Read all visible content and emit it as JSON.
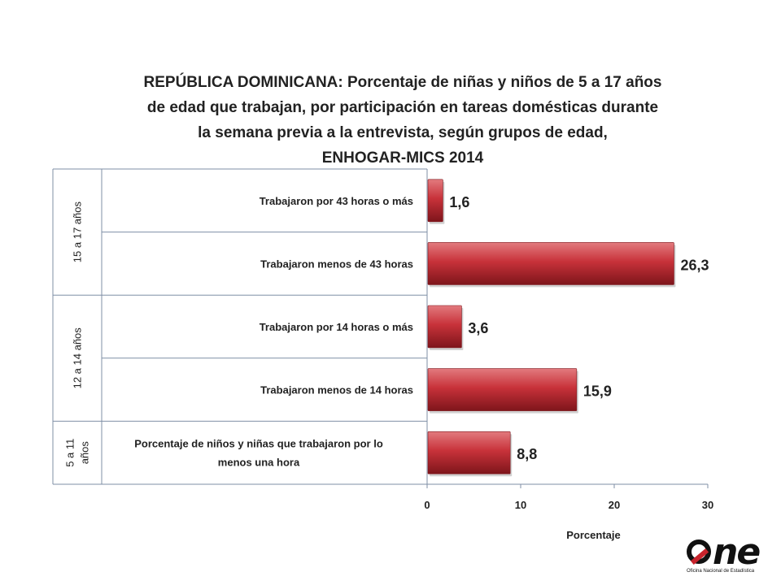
{
  "title_lines": [
    "REPÚBLICA  DOMINICANA: Porcentaje de niñas y niños de  5 a 17 años",
    "de edad que trabajan, por participación en tareas domésticas durante",
    "la semana previa a la entrevista, según grupos de edad,",
    "ENHOGAR-MICS 2014"
  ],
  "colors": {
    "bar": "#c8323a",
    "bar_dark": "#7e151b",
    "bar_light": "#e27a7e",
    "axis": "#7f8fa6",
    "text": "#222222"
  },
  "logo": {
    "word": "ne",
    "subtitle": "Oficina Nacional de Estadística"
  },
  "chart_data": {
    "type": "bar",
    "orientation": "horizontal",
    "title": "REPÚBLICA  DOMINICANA: Porcentaje de niñas y niños de  5 a 17 años de edad que trabajan, por participación en tareas domésticas durante la semana previa a la entrevista, según grupos de edad, ENHOGAR-MICS 2014",
    "categories": [
      "Trabajaron por 43 horas o más",
      "Trabajaron menos de 43 horas",
      "Trabajaron  por 14 horas o más",
      "Trabajaron menos de 14 horas",
      "Porcentaje de niños y niñas que trabajaron por lo menos una hora"
    ],
    "category_lines": [
      [
        "Trabajaron por 43 horas o más"
      ],
      [
        "Trabajaron menos de 43 horas"
      ],
      [
        "Trabajaron  por 14 horas o más"
      ],
      [
        "Trabajaron menos de 14 horas"
      ],
      [
        "Porcentaje de niños y niñas que trabajaron por lo",
        "menos una hora"
      ]
    ],
    "values": [
      1.6,
      26.3,
      3.6,
      15.9,
      8.8
    ],
    "value_labels": [
      "1,6",
      "26,3",
      "3,6",
      "15,9",
      "8,8"
    ],
    "groups": [
      {
        "label_lines": [
          "15 a 17 años"
        ],
        "categories": [
          0,
          1
        ]
      },
      {
        "label_lines": [
          "12 a 14 años"
        ],
        "categories": [
          2,
          3
        ]
      },
      {
        "label_lines": [
          "5 a 11",
          "años"
        ],
        "categories": [
          4
        ]
      }
    ],
    "xlim": [
      0,
      30
    ],
    "xticks": [
      "0",
      "10",
      "20",
      "30"
    ],
    "xtick_values": [
      0,
      10,
      20,
      30
    ],
    "xlabel": "Porcentaje",
    "ylabel": "",
    "grid": false,
    "legend": "none"
  }
}
